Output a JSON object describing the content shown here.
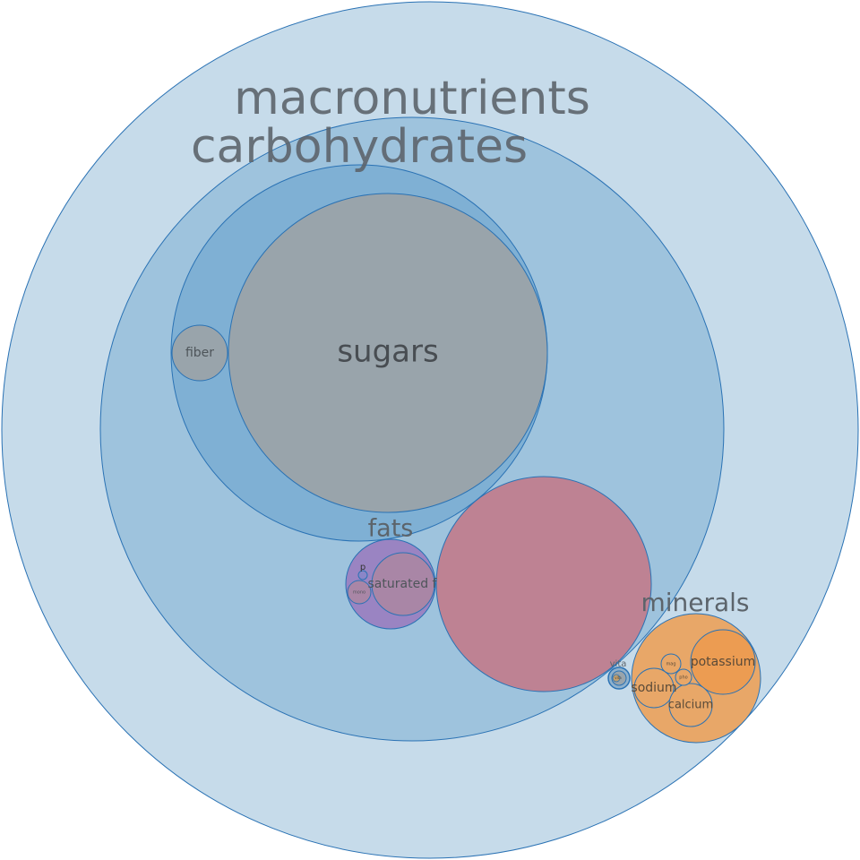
{
  "chart_data": {
    "type": "circle-packing",
    "title": "",
    "root": {
      "name": "macronutrients",
      "color": "#c6dbea",
      "children": [
        {
          "name": "carbohydrates",
          "color": "#9ec3dd",
          "children": [
            {
              "name": "",
              "color": "#7fb0d4",
              "children": [
                {
                  "name": "sugars",
                  "color": "#99a4ab"
                },
                {
                  "name": "fiber",
                  "color": "#99a4ab"
                }
              ]
            }
          ]
        },
        {
          "name": "",
          "color": "#be8293"
        },
        {
          "name": "fats",
          "color": "#9a84c2",
          "children": [
            {
              "name": "saturated f",
              "color": "#a986a6"
            },
            {
              "name": "mono",
              "color": "#a986a6"
            },
            {
              "name": "p",
              "color": "#8a86c8"
            }
          ]
        },
        {
          "name": "minerals",
          "color": "#e8a768",
          "children": [
            {
              "name": "potassium",
              "color": "#ec9c52"
            },
            {
              "name": "sodium",
              "color": "#e8a768"
            },
            {
              "name": "calcium",
              "color": "#e8a768"
            },
            {
              "name": "mag",
              "color": "#e8a768"
            },
            {
              "name": "pho",
              "color": "#e8a768"
            }
          ]
        },
        {
          "name": "vita",
          "color": "#8fb1cc",
          "children": [
            {
              "name": "vita",
              "color": "#c0a070"
            }
          ]
        }
      ]
    }
  }
}
